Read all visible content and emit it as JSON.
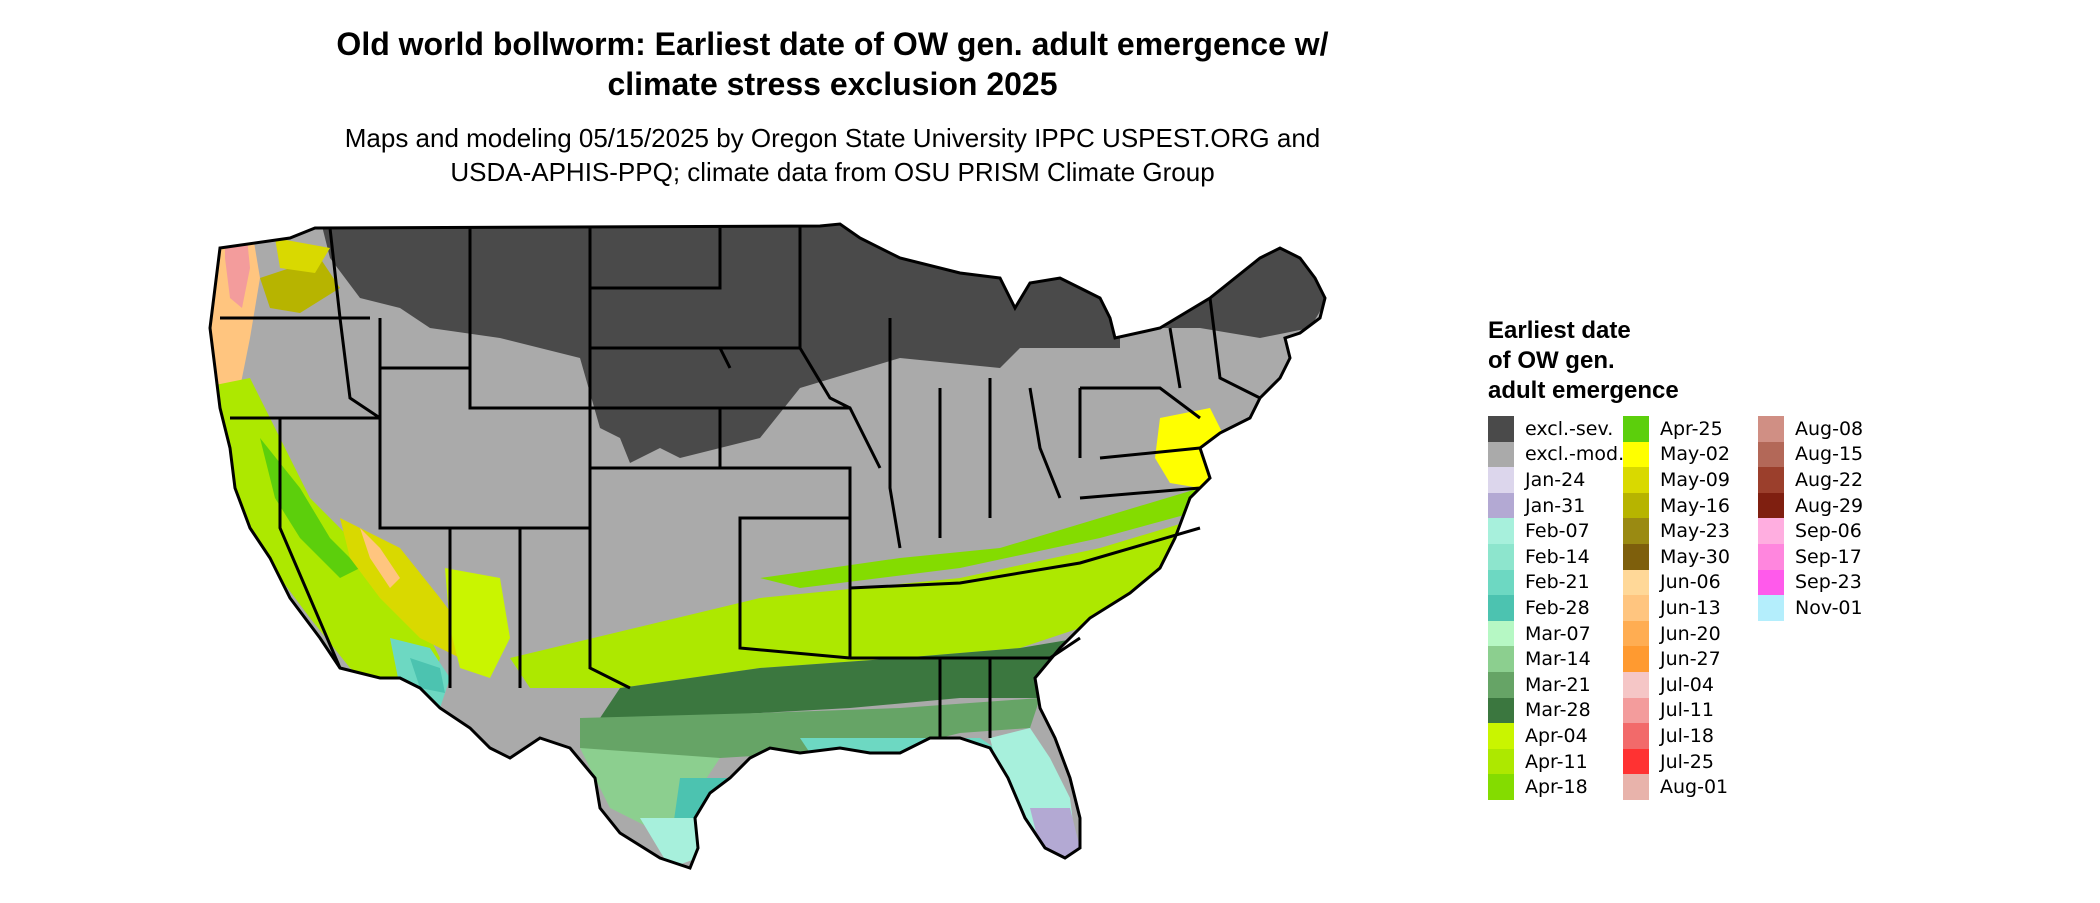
{
  "title": {
    "line1": "Old world bollworm: Earliest date of OW gen. adult emergence w/",
    "line2": "climate stress exclusion 2025"
  },
  "subtitle": {
    "line1": "Maps and modeling 05/15/2025 by Oregon State University IPPC USPEST.ORG and",
    "line2": "USDA-APHIS-PPQ; climate data from OSU PRISM Climate Group"
  },
  "legend": {
    "title_line1": "Earliest date",
    "title_line2": "of OW gen.",
    "title_line3": "adult emergence",
    "columns": [
      [
        {
          "label": "excl.-sev.",
          "color": "#4a4a4a"
        },
        {
          "label": "excl.-mod.",
          "color": "#aaaaaa"
        },
        {
          "label": "Jan-24",
          "color": "#dcd6ec"
        },
        {
          "label": "Jan-31",
          "color": "#b3a9d3"
        },
        {
          "label": "Feb-07",
          "color": "#a7f0dc"
        },
        {
          "label": "Feb-14",
          "color": "#8de5cd"
        },
        {
          "label": "Feb-21",
          "color": "#6dd8c2"
        },
        {
          "label": "Feb-28",
          "color": "#4cc3b0"
        },
        {
          "label": "Mar-07",
          "color": "#b6f8c4"
        },
        {
          "label": "Mar-14",
          "color": "#8ccf8f"
        },
        {
          "label": "Mar-21",
          "color": "#66a466"
        },
        {
          "label": "Mar-28",
          "color": "#3b773f"
        },
        {
          "label": "Apr-04",
          "color": "#c9f500"
        },
        {
          "label": "Apr-11",
          "color": "#ade800"
        },
        {
          "label": "Apr-18",
          "color": "#84dc00"
        }
      ],
      [
        {
          "label": "Apr-25",
          "color": "#5ccf0c"
        },
        {
          "label": "May-02",
          "color": "#ffff00"
        },
        {
          "label": "May-09",
          "color": "#d9d900"
        },
        {
          "label": "May-16",
          "color": "#b7b400"
        },
        {
          "label": "May-23",
          "color": "#9a8a12"
        },
        {
          "label": "May-30",
          "color": "#7e5f0c"
        },
        {
          "label": "Jun-06",
          "color": "#ffd898"
        },
        {
          "label": "Jun-13",
          "color": "#ffc57f"
        },
        {
          "label": "Jun-20",
          "color": "#ffad52"
        },
        {
          "label": "Jun-27",
          "color": "#ff9a30"
        },
        {
          "label": "Jul-04",
          "color": "#f5c6c6"
        },
        {
          "label": "Jul-11",
          "color": "#f39c9c"
        },
        {
          "label": "Jul-18",
          "color": "#f26a6a"
        },
        {
          "label": "Jul-25",
          "color": "#ff3232"
        },
        {
          "label": "Aug-01",
          "color": "#e8b3ab"
        }
      ],
      [
        {
          "label": "Aug-08",
          "color": "#d08f84"
        },
        {
          "label": "Aug-15",
          "color": "#b36858"
        },
        {
          "label": "Aug-22",
          "color": "#9b3f2c"
        },
        {
          "label": "Aug-29",
          "color": "#7f1f10"
        },
        {
          "label": "Sep-06",
          "color": "#ffaee0"
        },
        {
          "label": "Sep-17",
          "color": "#ff86de"
        },
        {
          "label": "Sep-23",
          "color": "#ff5aeb"
        },
        {
          "label": "Nov-01",
          "color": "#b4eefc"
        }
      ]
    ]
  }
}
